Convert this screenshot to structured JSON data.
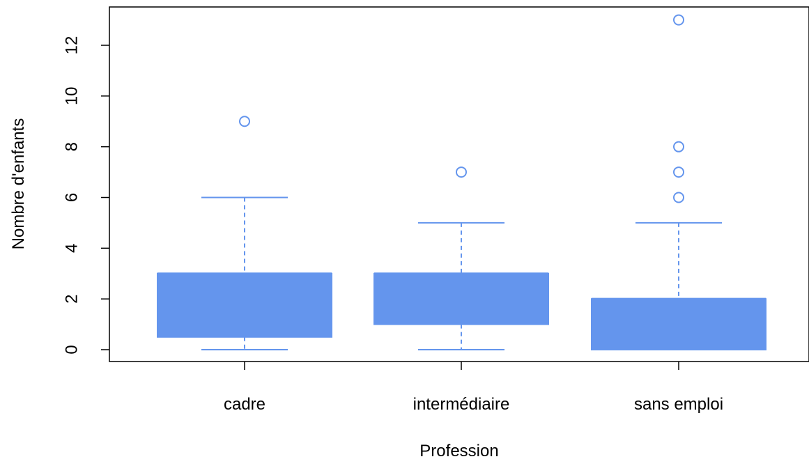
{
  "chart_data": {
    "type": "boxplot",
    "title": "",
    "xlabel": "Profession",
    "ylabel": "Nombre d'enfants",
    "ylim": [
      -0.5,
      13.5
    ],
    "yticks": [
      0,
      2,
      4,
      6,
      8,
      10,
      12
    ],
    "grid": false,
    "colors": {
      "fill": "#6495ED",
      "outline": "#6495ED",
      "axis": "#000000"
    },
    "categories": [
      "cadre",
      "intermédiaire",
      "sans emploi"
    ],
    "boxes": [
      {
        "category": "cadre",
        "whisker_low": 0,
        "q1": 0.5,
        "median": 3,
        "q3": 3,
        "whisker_high": 6,
        "outliers": [
          9
        ]
      },
      {
        "category": "intermédiaire",
        "whisker_low": 0,
        "q1": 1,
        "median": 3,
        "q3": 3,
        "whisker_high": 5,
        "outliers": [
          7
        ]
      },
      {
        "category": "sans emploi",
        "whisker_low": 0,
        "q1": 0,
        "median": 2,
        "q3": 2,
        "whisker_high": 5,
        "outliers": [
          6,
          7,
          8,
          13
        ]
      }
    ]
  }
}
